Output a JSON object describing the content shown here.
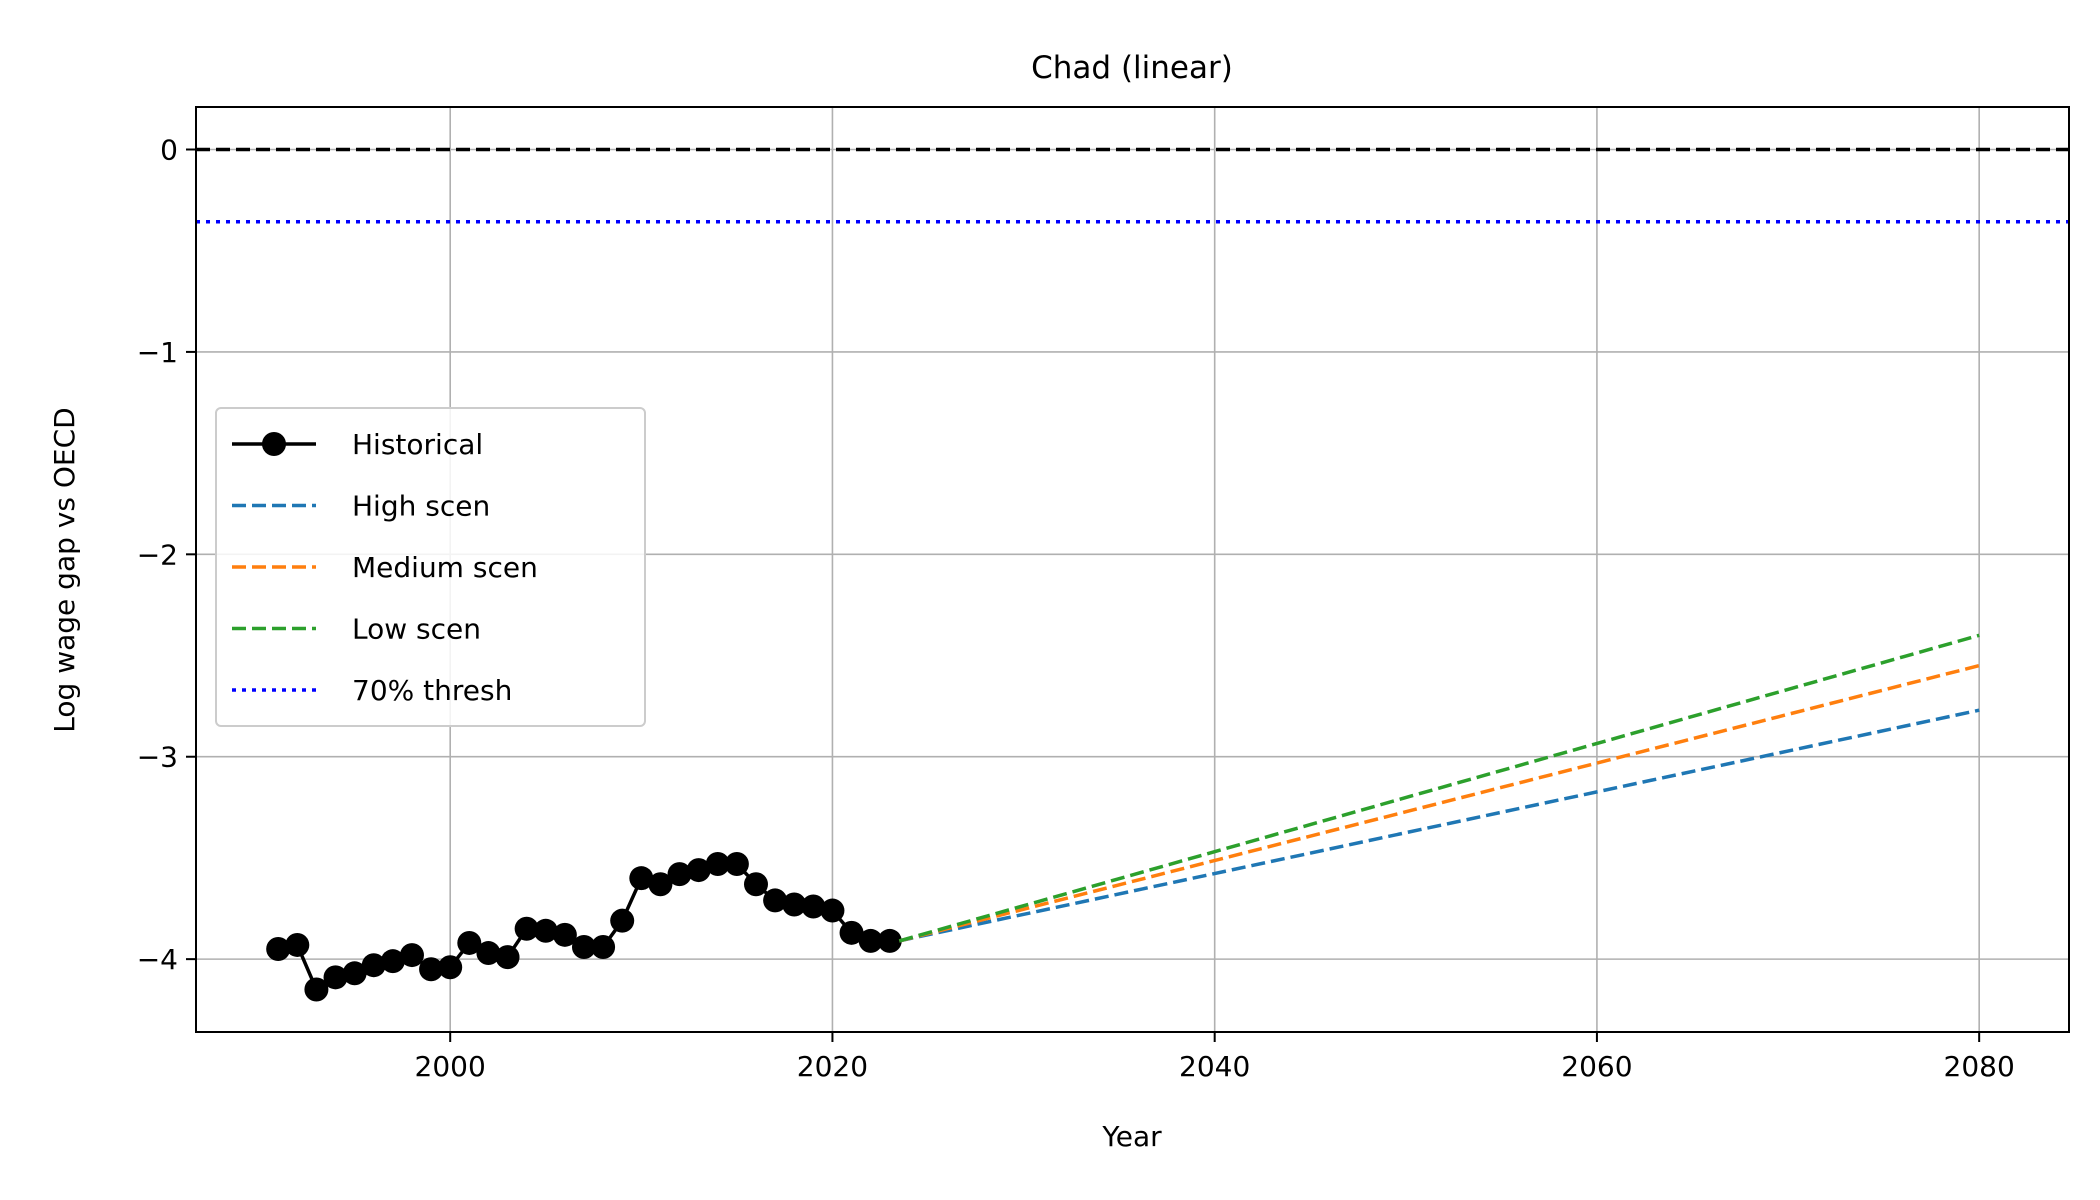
{
  "chart_data": {
    "type": "line",
    "title": "Chad (linear)",
    "xlabel": "Year",
    "ylabel": "Log wage gap vs OECD",
    "xlim": [
      1986.7,
      2084.7
    ],
    "ylim": [
      -4.36,
      0.21
    ],
    "x_ticks": [
      2000,
      2020,
      2040,
      2060,
      2080
    ],
    "y_ticks": [
      0,
      -1,
      -2,
      -3,
      -4
    ],
    "x_tick_labels": [
      "2000",
      "2020",
      "2040",
      "2060",
      "2080"
    ],
    "y_tick_labels": [
      "0",
      "−1",
      "−2",
      "−3",
      "−4"
    ],
    "grid": true,
    "legend_position": "center-left",
    "series": [
      {
        "name": "Historical",
        "style": "solid-marker",
        "color": "#000000",
        "x": [
          1991,
          1992,
          1993,
          1994,
          1995,
          1996,
          1997,
          1998,
          1999,
          2000,
          2001,
          2002,
          2003,
          2004,
          2005,
          2006,
          2007,
          2008,
          2009,
          2010,
          2011,
          2012,
          2013,
          2014,
          2015,
          2016,
          2017,
          2018,
          2019,
          2020,
          2021,
          2022,
          2023
        ],
        "y": [
          -3.95,
          -3.93,
          -4.15,
          -4.09,
          -4.07,
          -4.03,
          -4.01,
          -3.98,
          -4.05,
          -4.04,
          -3.92,
          -3.97,
          -3.99,
          -3.85,
          -3.86,
          -3.88,
          -3.94,
          -3.94,
          -3.81,
          -3.6,
          -3.63,
          -3.58,
          -3.56,
          -3.53,
          -3.53,
          -3.63,
          -3.71,
          -3.73,
          -3.74,
          -3.76,
          -3.87,
          -3.91,
          -3.91
        ]
      },
      {
        "name": "High scen",
        "style": "dashed",
        "color": "#1f77b4",
        "x": [
          2023.5,
          2080
        ],
        "y": [
          -3.91,
          -2.77
        ]
      },
      {
        "name": "Medium scen",
        "style": "dashed",
        "color": "#ff7f0e",
        "x": [
          2023.5,
          2080
        ],
        "y": [
          -3.91,
          -2.55
        ]
      },
      {
        "name": "Low scen",
        "style": "dashed",
        "color": "#2ca02c",
        "x": [
          2023.5,
          2080
        ],
        "y": [
          -3.91,
          -2.4
        ]
      },
      {
        "name": "70% thresh",
        "style": "dotted",
        "color": "#0000ff",
        "hline": -0.357
      }
    ],
    "reference_line": {
      "y": 0,
      "color": "#000000",
      "style": "dashed"
    }
  }
}
